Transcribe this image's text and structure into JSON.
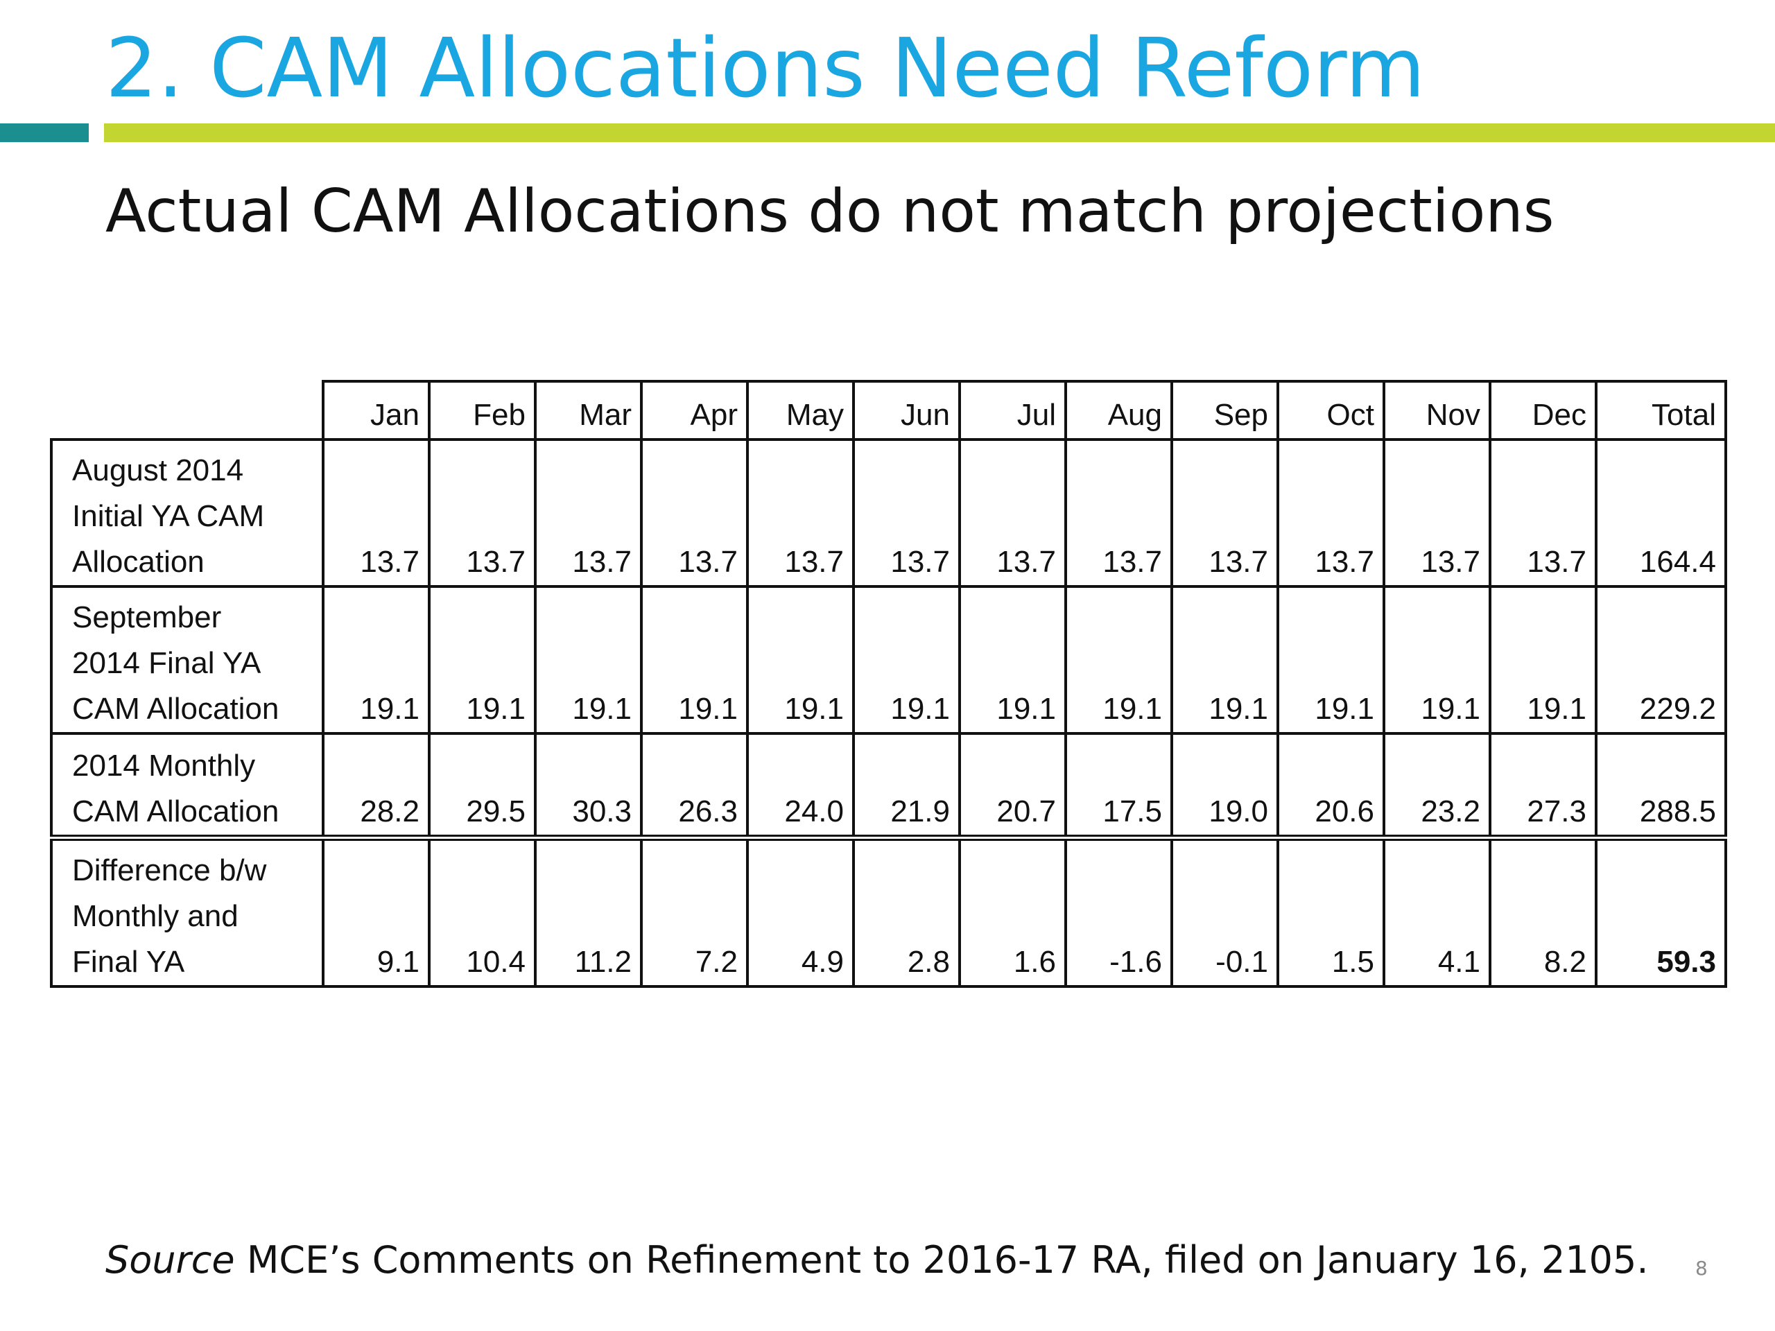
{
  "slide": {
    "title": "2. CAM Allocations Need Reform",
    "subtitle": "Actual CAM Allocations do not match projections",
    "source_label": "Source",
    "source_text": " MCE’s Comments on Refinement to 2016-17 RA, filed on January 16, 2105.",
    "page_number": "8",
    "colors": {
      "title": "#1aa6e0",
      "rule_teal": "#1b8f8f",
      "rule_green": "#c2d530"
    }
  },
  "table": {
    "columns": [
      "Jan",
      "Feb",
      "Mar",
      "Apr",
      "May",
      "Jun",
      "Jul",
      "Aug",
      "Sep",
      "Oct",
      "Nov",
      "Dec",
      "Total"
    ],
    "rows": [
      {
        "label_lines": [
          "August 2014",
          "Initial YA CAM",
          "Allocation"
        ],
        "values": [
          "13.7",
          "13.7",
          "13.7",
          "13.7",
          "13.7",
          "13.7",
          "13.7",
          "13.7",
          "13.7",
          "13.7",
          "13.7",
          "13.7",
          "164.4"
        ]
      },
      {
        "label_lines": [
          "September",
          "2014 Final YA",
          "CAM Allocation"
        ],
        "values": [
          "19.1",
          "19.1",
          "19.1",
          "19.1",
          "19.1",
          "19.1",
          "19.1",
          "19.1",
          "19.1",
          "19.1",
          "19.1",
          "19.1",
          "229.2"
        ]
      },
      {
        "label_lines": [
          "2014 Monthly",
          "CAM Allocation"
        ],
        "values": [
          "28.2",
          "29.5",
          "30.3",
          "26.3",
          "24.0",
          "21.9",
          "20.7",
          "17.5",
          "19.0",
          "20.6",
          "23.2",
          "27.3",
          "288.5"
        ]
      },
      {
        "label_lines": [
          "Difference b/w",
          "Monthly and",
          "Final YA"
        ],
        "values": [
          "9.1",
          "10.4",
          "11.2",
          "7.2",
          "4.9",
          "2.8",
          "1.6",
          "-1.6",
          "-0.1",
          "1.5",
          "4.1",
          "8.2",
          "59.3"
        ]
      }
    ]
  }
}
